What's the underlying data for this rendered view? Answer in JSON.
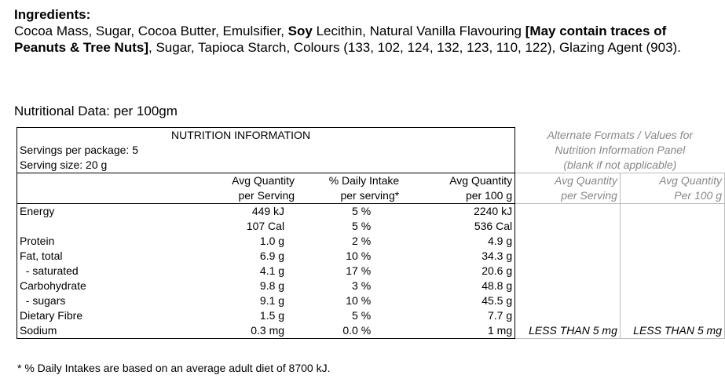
{
  "ingredients": {
    "title": "Ingredients:",
    "text_1": "Cocoa Mass, Sugar, Cocoa Butter, Emulsifier, ",
    "bold_1": "Soy",
    "text_2": " Lecithin, Natural Vanilla Flavouring ",
    "bold_2": "[May contain traces of Peanuts & Tree Nuts]",
    "text_3": ", Sugar, Tapioca Starch, Colours (133, 102, 124, 132, 123, 110, 122), Glazing Agent (903)."
  },
  "nutritional_data_title": "Nutritional Data: per 100gm",
  "panel": {
    "title": "NUTRITION INFORMATION",
    "servings_per_package": "Servings per package: 5",
    "serving_size": "Serving size: 20 g",
    "alt_note_1": "Alternate Formats / Values for",
    "alt_note_2": "Nutrition Information Panel",
    "alt_note_3": "(blank if not applicable)",
    "headers": {
      "avg_serving_1": "Avg Quantity",
      "avg_serving_2": "per Serving",
      "daily_1": "% Daily Intake",
      "daily_2": "per serving*",
      "avg_100_1": "Avg Quantity",
      "avg_100_2": "per 100 g",
      "alt_serving_1": "Avg Quantity",
      "alt_serving_2": "per Serving",
      "alt_100_1": "Avg Quantity",
      "alt_100_2": "Per 100 g"
    },
    "rows": [
      {
        "name": "Energy",
        "serving": "449 kJ",
        "daily": "5 %",
        "per100": "2240 kJ",
        "alt_serving": "",
        "alt_100": ""
      },
      {
        "name": "",
        "serving": "107 Cal",
        "daily": "5 %",
        "per100": "536 Cal",
        "alt_serving": "",
        "alt_100": ""
      },
      {
        "name": "Protein",
        "serving": "1.0 g",
        "daily": "2 %",
        "per100": "4.9 g",
        "alt_serving": "",
        "alt_100": ""
      },
      {
        "name": "Fat, total",
        "serving": "6.9 g",
        "daily": "10 %",
        "per100": "34.3 g",
        "alt_serving": "",
        "alt_100": ""
      },
      {
        "name": "  - saturated",
        "serving": "4.1 g",
        "daily": "17 %",
        "per100": "20.6 g",
        "alt_serving": "",
        "alt_100": ""
      },
      {
        "name": "Carbohydrate",
        "serving": "9.8 g",
        "daily": "3 %",
        "per100": "48.8 g",
        "alt_serving": "",
        "alt_100": ""
      },
      {
        "name": "  - sugars",
        "serving": "9.1 g",
        "daily": "10 %",
        "per100": "45.5 g",
        "alt_serving": "",
        "alt_100": ""
      },
      {
        "name": "Dietary Fibre",
        "serving": "1.5 g",
        "daily": "5 %",
        "per100": "7.7 g",
        "alt_serving": "",
        "alt_100": ""
      },
      {
        "name": "Sodium",
        "serving": "0.3 mg",
        "daily": "0.0 %",
        "per100": "1 mg",
        "alt_serving": "LESS THAN 5 mg",
        "alt_100": "LESS THAN 5 mg"
      }
    ],
    "footnote": "* % Daily Intakes are based on an average adult diet of 8700 kJ."
  }
}
